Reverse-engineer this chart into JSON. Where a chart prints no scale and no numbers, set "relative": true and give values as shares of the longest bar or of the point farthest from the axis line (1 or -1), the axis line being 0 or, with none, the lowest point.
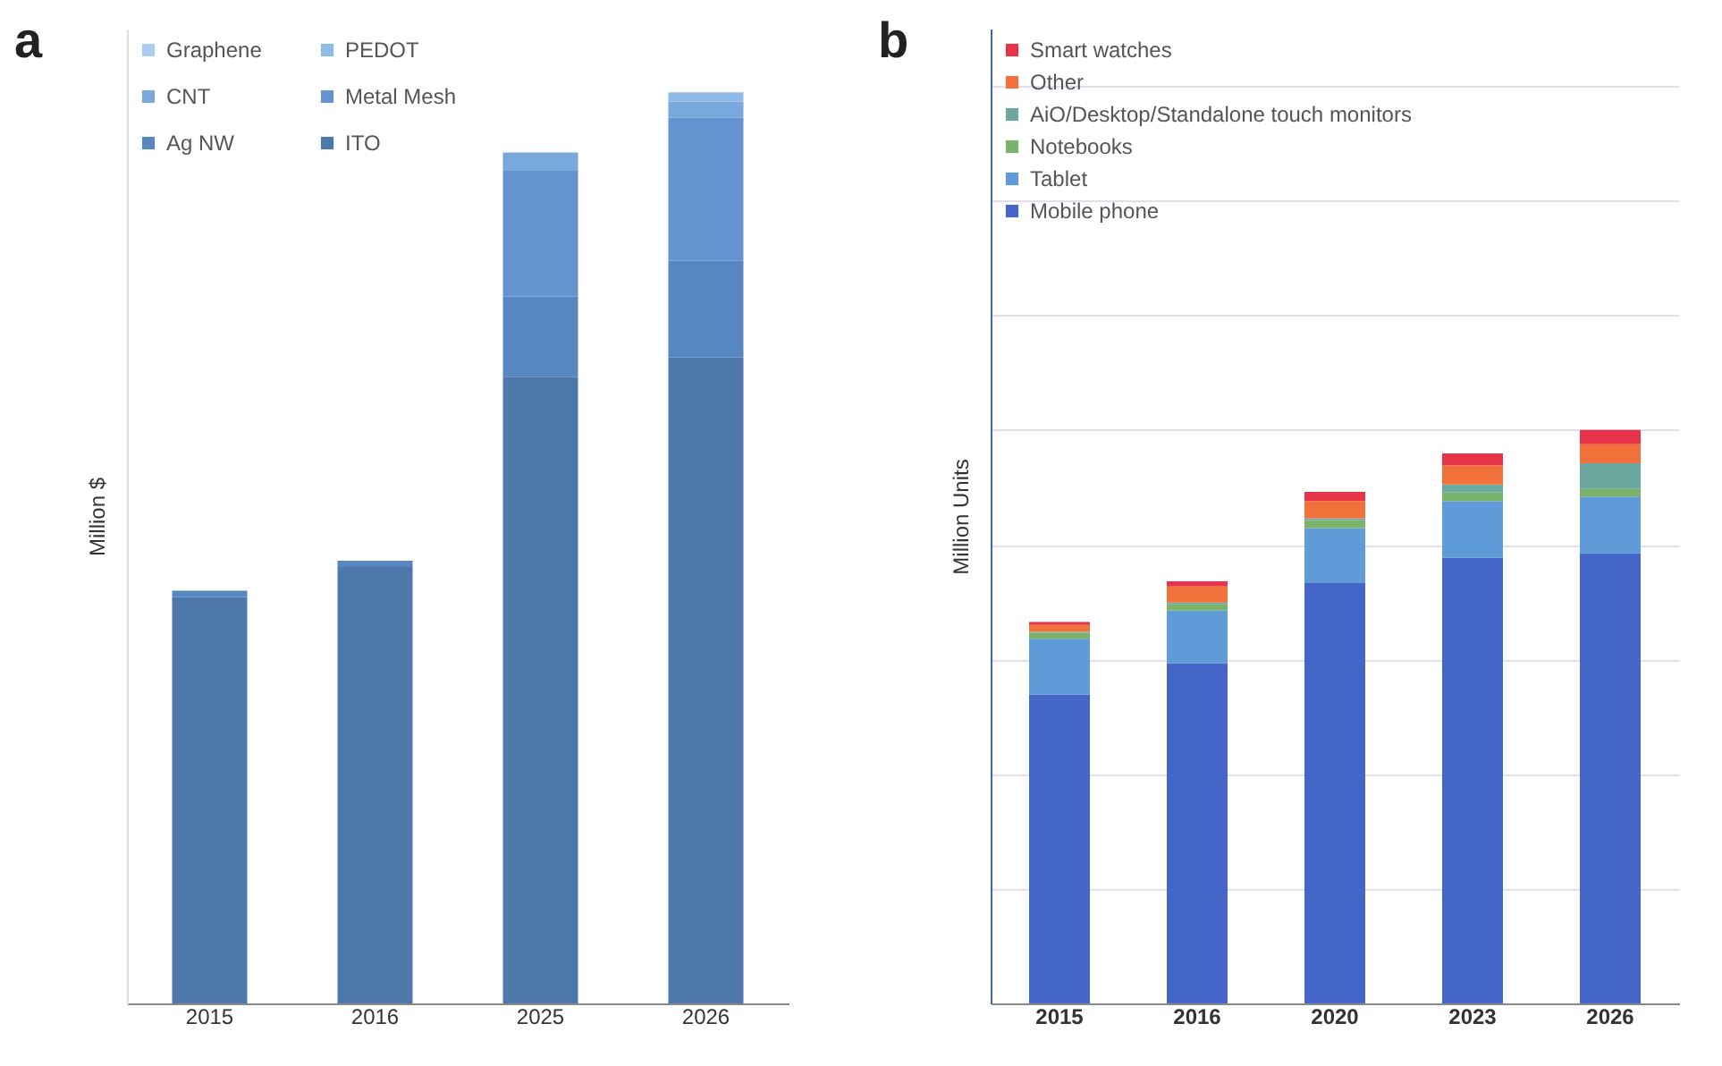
{
  "chart_data": [
    {
      "type": "bar",
      "title": "a",
      "ylabel": "Million $",
      "categories": [
        "2015",
        "2016",
        "2025",
        "2026"
      ],
      "stacked": true,
      "relative": true,
      "legend": "top left",
      "series": [
        {
          "name": "ITO",
          "color": "#4f78aa",
          "values": [
            0.446,
            0.479,
            0.688,
            0.709
          ]
        },
        {
          "name": "Ag NW",
          "color": "#5787c0",
          "values": [
            0.007,
            0.007,
            0.088,
            0.106
          ]
        },
        {
          "name": "Metal Mesh",
          "color": "#6494cf",
          "values": [
            0,
            0,
            0.138,
            0.157
          ]
        },
        {
          "name": "CNT",
          "color": "#79a8dc",
          "values": [
            0,
            0,
            0.02,
            0.018
          ]
        },
        {
          "name": "PEDOT",
          "color": "#8fbbe9",
          "values": [
            0,
            0,
            0,
            0.01
          ]
        },
        {
          "name": "Graphene",
          "color": "#adcbef",
          "values": [
            0,
            0,
            0,
            0
          ]
        }
      ]
    },
    {
      "type": "bar",
      "title": "b",
      "ylabel": "Million Units",
      "categories": [
        "2015",
        "2016",
        "2020",
        "2023",
        "2026"
      ],
      "stacked": true,
      "relative": true,
      "legend": "top left",
      "grid": "y",
      "series": [
        {
          "name": "Mobile phone",
          "color": "#4466c8",
          "values": [
            0.539,
            0.593,
            0.733,
            0.777,
            0.785
          ]
        },
        {
          "name": "Tablet",
          "color": "#5f9bd9",
          "values": [
            0.097,
            0.092,
            0.096,
            0.099,
            0.099
          ]
        },
        {
          "name": "Notebooks",
          "color": "#7bb36b",
          "values": [
            0.01,
            0.011,
            0.014,
            0.015,
            0.013
          ]
        },
        {
          "name": "AiO/Desktop/Standalone touch monitors",
          "color": "#6aa8a0",
          "values": [
            0.002,
            0.003,
            0.003,
            0.014,
            0.045
          ]
        },
        {
          "name": "Other",
          "color": "#f2703a",
          "values": [
            0.012,
            0.028,
            0.03,
            0.033,
            0.033
          ]
        },
        {
          "name": "Smart watches",
          "color": "#e8344a",
          "values": [
            0.005,
            0.009,
            0.016,
            0.021,
            0.025
          ]
        }
      ]
    }
  ]
}
